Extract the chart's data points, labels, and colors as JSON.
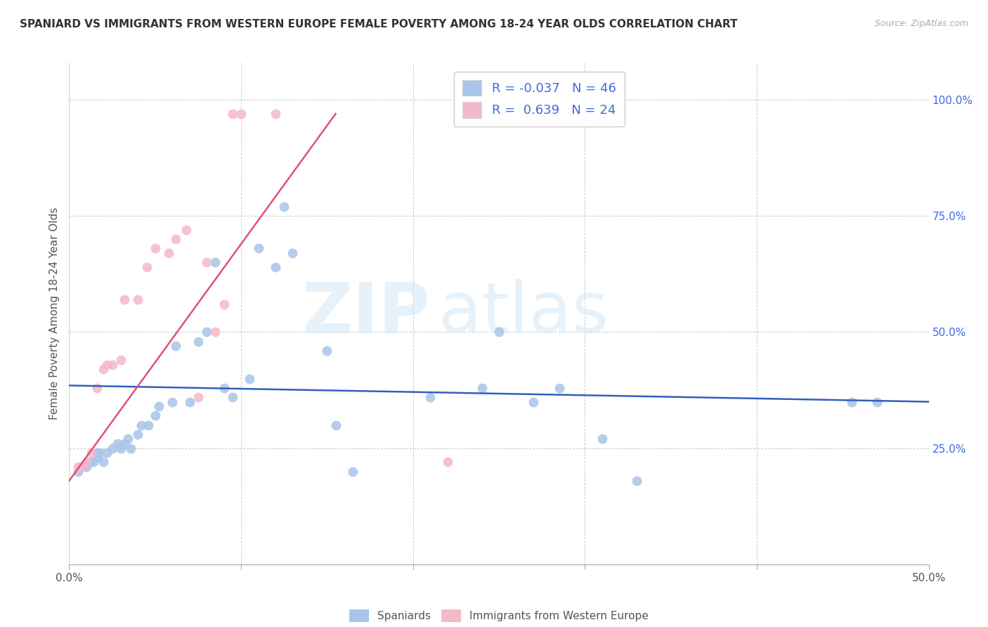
{
  "title": "SPANIARD VS IMMIGRANTS FROM WESTERN EUROPE FEMALE POVERTY AMONG 18-24 YEAR OLDS CORRELATION CHART",
  "source": "Source: ZipAtlas.com",
  "ylabel": "Female Poverty Among 18-24 Year Olds",
  "ytick_labels": [
    "100.0%",
    "75.0%",
    "50.0%",
    "25.0%"
  ],
  "ytick_values": [
    1.0,
    0.75,
    0.5,
    0.25
  ],
  "xlim": [
    0.0,
    0.5
  ],
  "ylim": [
    0.0,
    1.08
  ],
  "blue_R": "-0.037",
  "blue_N": "46",
  "pink_R": "0.639",
  "pink_N": "24",
  "legend_label_blue": "Spaniards",
  "legend_label_pink": "Immigrants from Western Europe",
  "blue_color": "#a8c4e8",
  "pink_color": "#f5b8c8",
  "blue_line_color": "#3060c0",
  "pink_line_color": "#e0507a",
  "watermark_zip": "ZIP",
  "watermark_atlas": "atlas",
  "blue_scatter_x": [
    0.005,
    0.007,
    0.01,
    0.012,
    0.014,
    0.016,
    0.016,
    0.018,
    0.02,
    0.022,
    0.025,
    0.028,
    0.03,
    0.032,
    0.034,
    0.036,
    0.04,
    0.042,
    0.046,
    0.05,
    0.052,
    0.06,
    0.062,
    0.07,
    0.075,
    0.08,
    0.085,
    0.09,
    0.095,
    0.105,
    0.11,
    0.12,
    0.125,
    0.13,
    0.15,
    0.155,
    0.165,
    0.21,
    0.24,
    0.25,
    0.27,
    0.285,
    0.31,
    0.33,
    0.455,
    0.47
  ],
  "blue_scatter_y": [
    0.2,
    0.21,
    0.21,
    0.22,
    0.22,
    0.23,
    0.24,
    0.24,
    0.22,
    0.24,
    0.25,
    0.26,
    0.25,
    0.26,
    0.27,
    0.25,
    0.28,
    0.3,
    0.3,
    0.32,
    0.34,
    0.35,
    0.47,
    0.35,
    0.48,
    0.5,
    0.65,
    0.38,
    0.36,
    0.4,
    0.68,
    0.64,
    0.77,
    0.67,
    0.46,
    0.3,
    0.2,
    0.36,
    0.38,
    0.5,
    0.35,
    0.38,
    0.27,
    0.18,
    0.35,
    0.35
  ],
  "pink_scatter_x": [
    0.005,
    0.007,
    0.01,
    0.013,
    0.016,
    0.02,
    0.022,
    0.025,
    0.03,
    0.032,
    0.04,
    0.045,
    0.05,
    0.058,
    0.062,
    0.068,
    0.075,
    0.08,
    0.085,
    0.09,
    0.095,
    0.1,
    0.12,
    0.22
  ],
  "pink_scatter_y": [
    0.21,
    0.21,
    0.22,
    0.24,
    0.38,
    0.42,
    0.43,
    0.43,
    0.44,
    0.57,
    0.57,
    0.64,
    0.68,
    0.67,
    0.7,
    0.72,
    0.36,
    0.65,
    0.5,
    0.56,
    0.97,
    0.97,
    0.97,
    0.22
  ],
  "blue_trend_x": [
    0.0,
    0.5
  ],
  "blue_trend_y": [
    0.385,
    0.35
  ],
  "pink_trend_x": [
    0.0,
    0.155
  ],
  "pink_trend_y": [
    0.18,
    0.97
  ]
}
